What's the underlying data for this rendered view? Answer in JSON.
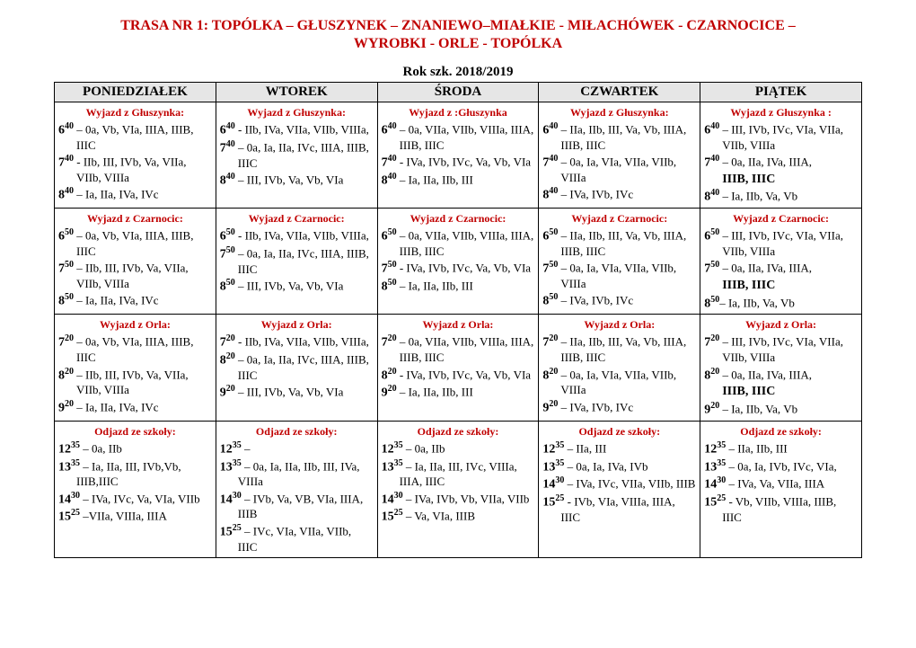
{
  "title_line1": "TRASA NR 1: TOPÓLKA – GŁUSZYNEK – ZNANIEWO–MIAŁKIE - MIŁACHÓWEK -  CZARNOCICE –",
  "title_line2": "WYROBKI - ORLE - TOPÓLKA",
  "subtitle": "Rok szk. 2018/2019",
  "days": [
    "PONIEDZIAŁEK",
    "WTOREK",
    "ŚRODA",
    "CZWARTEK",
    "PIĄTEK"
  ],
  "rows": [
    {
      "cells": [
        {
          "header": "Wyjazd z Głuszynka:",
          "entries": [
            {
              "h": "6",
              "m": "40",
              "sep": " – ",
              "txt": "0a, Vb, VIa, IIIA, IIIB, IIIC"
            },
            {
              "h": "7",
              "m": "40",
              "sep": " -  ",
              "txt": "IIb, III, IVb, Va, VIIa, VIIb, VIIIa"
            },
            {
              "h": "8",
              "m": "40",
              "sep": " – ",
              "txt": "Ia, IIa, IVa, IVc"
            }
          ]
        },
        {
          "header": "Wyjazd z Głuszynka:",
          "entries": [
            {
              "h": "6",
              "m": "40",
              "sep": " -  ",
              "txt": "IIb, IVa, VIIa,  VIIb, VIIIa,"
            },
            {
              "h": "7",
              "m": "40",
              "sep": " – ",
              "txt": "0a, Ia,  IIa, IVc, IIIA, IIIB, IIIC"
            },
            {
              "h": "8",
              "m": "40",
              "sep": " – ",
              "txt": "III, IVb, Va, Vb, VIa"
            }
          ]
        },
        {
          "header": "Wyjazd z :Głuszynka",
          "entries": [
            {
              "h": "6",
              "m": "40",
              "sep": " –  ",
              "txt": "0a, VIIa, VIIb, VIIIa, IIIA, IIIB, IIIC"
            },
            {
              "h": "7",
              "m": "40",
              "sep": " -  ",
              "txt": "IVa, IVb, IVc, Va, Vb, VIa"
            },
            {
              "h": "8",
              "m": "40",
              "sep": " – ",
              "txt": "Ia, IIa, IIb, III"
            }
          ]
        },
        {
          "header": "Wyjazd z Głuszynka:",
          "entries": [
            {
              "h": "6",
              "m": "40",
              "sep": " – ",
              "txt": "IIa, IIb, III, Va, Vb, IIIA, IIIB, IIIC"
            },
            {
              "h": "7",
              "m": "40",
              "sep": " – ",
              "txt": "0a, Ia, VIa, VIIa, VIIb, VIIIa"
            },
            {
              "h": "8",
              "m": "40",
              "sep": " – ",
              "txt": "IVa, IVb, IVc"
            }
          ]
        },
        {
          "header": "Wyjazd z Głuszynka :",
          "entries": [
            {
              "h": "6",
              "m": "40",
              "sep": " –  ",
              "txt": "III, IVb, IVc, VIa, VIIa, VIIb, VIIIa"
            },
            {
              "h": "7",
              "m": "40",
              "sep": " – ",
              "txt": "0a, IIa, IVa, IIIA,",
              "bold_after": "IIIB, IIIC"
            },
            {
              "h": "8",
              "m": "40",
              "sep": "  – ",
              "txt": "Ia, IIb, Va, Vb"
            }
          ]
        }
      ]
    },
    {
      "cells": [
        {
          "header": "Wyjazd z Czarnocic:",
          "entries": [
            {
              "h": "6",
              "m": "50",
              "sep": " –  ",
              "txt": "0a, Vb, VIa, IIIA, IIIB, IIIC"
            },
            {
              "h": "7",
              "m": "50",
              "sep": " –   ",
              "txt": "IIb, III, IVb, Va, VIIa, VIIb, VIIIa"
            },
            {
              "h": "8",
              "m": "50",
              "sep": " –  ",
              "txt": "Ia, IIa, IVa, IVc"
            }
          ]
        },
        {
          "header": "Wyjazd z Czarnocic:",
          "entries": [
            {
              "h": "6",
              "m": "50",
              "sep": " -   ",
              "txt": "IIb, IVa, VIIa,      VIIb, VIIIa,"
            },
            {
              "h": "7",
              "m": "50",
              "sep": " – ",
              "txt": "0a, Ia,  IIa, IVc, IIIA, IIIB, IIIC"
            },
            {
              "h": "8",
              "m": "50",
              "sep": " –  ",
              "txt": "III, IVb, Va, Vb, VIa"
            }
          ]
        },
        {
          "header": "Wyjazd z Czarnocic:",
          "entries": [
            {
              "h": "6",
              "m": "50",
              "sep": " – ",
              "txt": "0a, VIIa, VIIb, VIIIa, IIIA, IIIB, IIIC"
            },
            {
              "h": "7",
              "m": "50",
              "sep": " -   ",
              "txt": "IVa, IVb, IVc, Va, Vb, VIa"
            },
            {
              "h": "8",
              "m": "50",
              "sep": " –  ",
              "txt": "Ia, IIa, IIb, III"
            }
          ]
        },
        {
          "header": "Wyjazd z Czarnocic:",
          "entries": [
            {
              "h": "6",
              "m": "50",
              "sep": " –  ",
              "txt": "IIa, IIb, III, Va, Vb, IIIA, IIIB, IIIC"
            },
            {
              "h": "7",
              "m": "50",
              "sep": " – ",
              "txt": "0a, Ia, VIa, VIIa, VIIb, VIIIa"
            },
            {
              "h": "8",
              "m": "50",
              "sep": " –  ",
              "txt": "IVa, IVb, IVc"
            }
          ]
        },
        {
          "header": "Wyjazd z Czarnocic:",
          "entries": [
            {
              "h": "6",
              "m": "50",
              "sep": " –  ",
              "txt": "III, IVb, IVc, VIa, VIIa, VIIb, VIIIa"
            },
            {
              "h": "7",
              "m": "50",
              "sep": " – ",
              "txt": "0a, IIa, IVa, IIIA,",
              "bold_after": "IIIB, IIIC"
            },
            {
              "h": "8",
              "m": "50",
              "sep": "–  ",
              "txt": "Ia, IIb, Va, Vb"
            }
          ]
        }
      ]
    },
    {
      "cells": [
        {
          "header": "Wyjazd z Orla:",
          "entries": [
            {
              "h": "7",
              "m": "20",
              "sep": " – ",
              "txt": "0a, Vb, VIa, IIIA, IIIB, IIIC"
            },
            {
              "h": "8",
              "m": "20",
              "sep": " – ",
              "txt": "IIb, III, IVb, Va, VIIa, VIIb, VIIIa"
            },
            {
              "h": "9",
              "m": "20",
              "sep": " –  ",
              "txt": "Ia, IIa, IVa, IVc"
            }
          ]
        },
        {
          "header": "Wyjazd z Orla:",
          "entries": [
            {
              "h": "7",
              "m": "20",
              "sep": " -  ",
              "txt": "IIb, IVa, VIIa,  VIIb, VIIIa,"
            },
            {
              "h": "8",
              "m": "20",
              "sep": " – ",
              "txt": "0a, Ia,  IIa, IVc, IIIA, IIIB, IIIC"
            },
            {
              "h": "9",
              "m": "20",
              "sep": " –  ",
              "txt": "III, IVb, Va, Vb, VIa"
            }
          ]
        },
        {
          "header": "Wyjazd z Orla:",
          "entries": [
            {
              "h": "7",
              "m": "20",
              "sep": " – ",
              "txt": "0a, VIIa, VIIb, VIIIa, IIIA, IIIB, IIIC"
            },
            {
              "h": "8",
              "m": "20",
              "sep": " -   ",
              "txt": "IVa, IVb, IVc, Va, Vb, VIa"
            },
            {
              "h": "9",
              "m": "20",
              "sep": " –  ",
              "txt": "Ia, IIa, IIb, III"
            }
          ]
        },
        {
          "header": "Wyjazd z Orla:",
          "entries": [
            {
              "h": "7",
              "m": "20",
              "sep": " – ",
              "txt": "IIa, IIb, III, Va, Vb, IIIA, IIIB, IIIC"
            },
            {
              "h": "8",
              "m": "20",
              "sep": " – ",
              "txt": "0a, Ia, VIa, VIIa, VIIb, VIIIa"
            },
            {
              "h": "9",
              "m": "20",
              "sep": " –  ",
              "txt": "IVa, IVb, IVc"
            }
          ]
        },
        {
          "header": "Wyjazd z Orla:",
          "entries": [
            {
              "h": "7",
              "m": "20",
              "sep": " – ",
              "txt": "III, IVb, IVc, VIa, VIIa, VIIb, VIIIa"
            },
            {
              "h": "8",
              "m": "20",
              "sep": " – ",
              "txt": "0a, IIa, IVa, IIIA,",
              "bold_after": "IIIB, IIIC"
            },
            {
              "h": "9",
              "m": "20",
              "sep": "  –  ",
              "txt": "Ia, IIb, Va, Vb"
            }
          ]
        }
      ]
    },
    {
      "cells": [
        {
          "header": "Odjazd ze szkoły:",
          "entries": [
            {
              "h": "12",
              "m": "35",
              "sep": " –  ",
              "txt": "0a, IIb"
            },
            {
              "h": "13",
              "m": "35",
              "sep": " – ",
              "txt": "Ia, IIa, III, IVb,Vb, IIIB,IIIC"
            },
            {
              "h": "14",
              "m": "30",
              "sep": " – ",
              "txt": "IVa, IVc, Va, VIa, VIIb"
            },
            {
              "h": "15",
              "m": "25",
              "sep": " –",
              "txt": "VIIa, VIIIa, IIIA"
            }
          ]
        },
        {
          "header": "Odjazd ze szkoły:",
          "entries": [
            {
              "h": "12",
              "m": "35",
              "sep": " –",
              "txt": ""
            },
            {
              "h": "13",
              "m": "35",
              "sep": " – ",
              "txt": "0a, Ia, IIa, IIb, III, IVa, VIIIa"
            },
            {
              "h": "14",
              "m": "30",
              "sep": " –  ",
              "txt": "IVb, Va, VB, VIa, IIIA, IIIB"
            },
            {
              "h": "15",
              "m": "25",
              "sep": " – ",
              "txt": "IVc, VIa, VIIa, VIIb, IIIC"
            }
          ]
        },
        {
          "header": "Odjazd ze szkoły:",
          "entries": [
            {
              "h": "12",
              "m": "35",
              "sep": " – ",
              "txt": "0a, IIb"
            },
            {
              "h": "13",
              "m": "35",
              "sep": " – ",
              "txt": "Ia, IIa, III, IVc, VIIIa, IIIA, IIIC"
            },
            {
              "h": "14",
              "m": "30",
              "sep": " – ",
              "txt": "IVa, IVb, Vb, VIIa, VIIb"
            },
            {
              "h": "15",
              "m": "25",
              "sep": " – ",
              "txt": "Va, VIa, IIIB"
            }
          ]
        },
        {
          "header": "Odjazd ze szkoły:",
          "entries": [
            {
              "h": "12",
              "m": "35",
              "sep": " – ",
              "txt": "IIa, III"
            },
            {
              "h": "13",
              "m": "35",
              "sep": " – ",
              "txt": "0a, Ia, IVa, IVb"
            },
            {
              "h": "14",
              "m": "30",
              "sep": " –  ",
              "txt": "IVa, IVc, VIIa, VIIb, IIIB"
            },
            {
              "h": "15",
              "m": "25",
              "sep": "  - ",
              "txt": "IVb, VIa, VIIIa, IIIA, IIIC"
            }
          ]
        },
        {
          "header": "Odjazd ze szkoły:",
          "entries": [
            {
              "h": "12",
              "m": "35",
              "sep": " – ",
              "txt": "IIa, IIb, III"
            },
            {
              "h": "13",
              "m": "35",
              "sep": " – ",
              "txt": "0a, Ia, IVb, IVc, VIa,"
            },
            {
              "h": "14",
              "m": "30",
              "sep": " – ",
              "txt": "IVa, Va, VIIa, IIIA"
            },
            {
              "h": "15",
              "m": "25",
              "sep": "  - ",
              "txt": "Vb, VIIb, VIIIa, IIIB, IIIC"
            }
          ]
        }
      ]
    }
  ]
}
